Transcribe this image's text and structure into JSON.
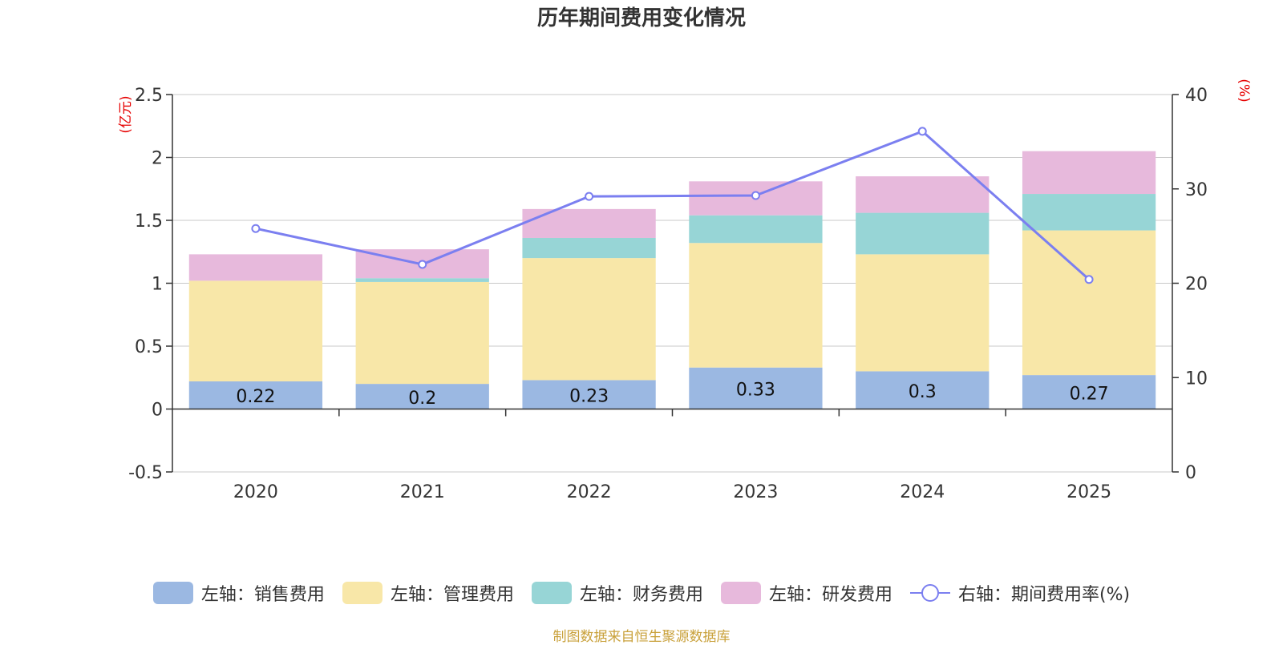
{
  "chart_data": {
    "type": "bar+line",
    "title": "历年期间费用变化情况",
    "categories": [
      "2020",
      "2021",
      "2022",
      "2023",
      "2024",
      "2025"
    ],
    "left_axis": {
      "unit": "(亿元)",
      "ylim": [
        -0.5,
        2.5
      ],
      "ticks": [
        "-0.5",
        "0",
        "0.5",
        "1",
        "1.5",
        "2",
        "2.5"
      ]
    },
    "right_axis": {
      "unit": "(%)",
      "ylim": [
        0,
        40
      ],
      "ticks": [
        "0",
        "10",
        "20",
        "30",
        "40"
      ]
    },
    "series": [
      {
        "name": "左轴：销售费用",
        "kind": "bar",
        "axis": "left",
        "color": "#9bb8e2",
        "values": [
          0.22,
          0.2,
          0.23,
          0.33,
          0.3,
          0.27
        ],
        "labels": [
          "0.22",
          "0.2",
          "0.23",
          "0.33",
          "0.3",
          "0.27"
        ]
      },
      {
        "name": "左轴：管理费用",
        "kind": "bar",
        "axis": "left",
        "color": "#f8e7a8",
        "values": [
          0.8,
          0.81,
          0.97,
          0.99,
          0.93,
          1.15
        ]
      },
      {
        "name": "左轴：财务费用",
        "kind": "bar",
        "axis": "left",
        "color": "#97d5d6",
        "values": [
          0.0,
          0.03,
          0.16,
          0.22,
          0.33,
          0.29
        ]
      },
      {
        "name": "左轴：研发费用",
        "kind": "bar",
        "axis": "left",
        "color": "#e7b9dc",
        "values": [
          0.21,
          0.23,
          0.23,
          0.27,
          0.29,
          0.34
        ]
      },
      {
        "name": "右轴：期间费用率(%)",
        "kind": "line",
        "axis": "right",
        "color": "#7b7ff0",
        "values": [
          25.8,
          22.0,
          29.2,
          29.3,
          36.1,
          20.4
        ]
      }
    ],
    "legend_position": "bottom",
    "grid": true
  },
  "source_text": "制图数据来自恒生聚源数据库",
  "colors": {
    "axis_unit": "#e60000",
    "source": "#c9a13b",
    "grid": "#c8c8c8",
    "axis": "#333333"
  }
}
